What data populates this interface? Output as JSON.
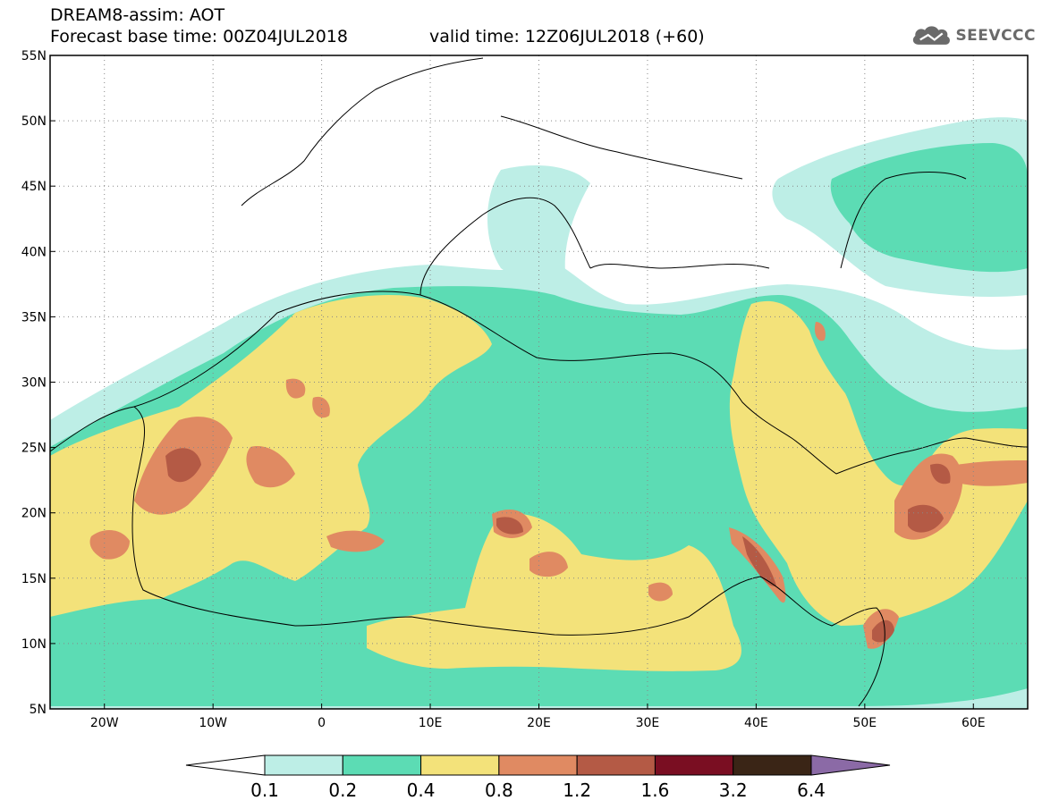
{
  "header": {
    "title": "DREAM8-assim: AOT",
    "base_time": "Forecast base time: 00Z04JUL2018",
    "valid_time": "valid time: 12Z06JUL2018 (+60)"
  },
  "logo": {
    "text": "SEEVCCC",
    "icon": "cloud-icon"
  },
  "map": {
    "variable": "AOT",
    "lat_labels": [
      "55N",
      "50N",
      "45N",
      "40N",
      "35N",
      "30N",
      "25N",
      "20N",
      "15N",
      "10N",
      "5N"
    ],
    "lon_labels": [
      "20W",
      "10W",
      "0",
      "10E",
      "20E",
      "30E",
      "40E",
      "50E",
      "60E"
    ],
    "grid": true
  },
  "colorbar": {
    "levels": [
      "0.1",
      "0.2",
      "0.4",
      "0.8",
      "1.2",
      "1.6",
      "3.2",
      "6.4"
    ],
    "colors": [
      "#ffffff",
      "#bdeee6",
      "#5cdcb4",
      "#f3e27a",
      "#e08a62",
      "#b45a45",
      "#7a0e22",
      "#3a2516",
      "#8b6aa6"
    ]
  }
}
